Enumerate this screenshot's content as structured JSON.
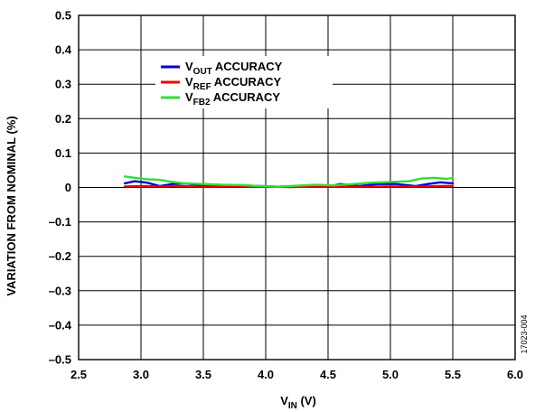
{
  "chart_data": {
    "type": "line",
    "xlabel": {
      "main": "V",
      "sub": "IN",
      "unit": " (V)"
    },
    "ylabel": "VARIATION FROM NOMINAL (%)",
    "xlim": [
      2.5,
      6.0
    ],
    "ylim": [
      -0.5,
      0.5
    ],
    "xticks": [
      "2.5",
      "3.0",
      "3.5",
      "4.0",
      "4.5",
      "5.0",
      "5.5",
      "6.0"
    ],
    "yticks": [
      "0.5",
      "0.4",
      "0.3",
      "0.2",
      "0.1",
      "0",
      "–0.1",
      "–0.2",
      "–0.3",
      "–0.4",
      "–0.5"
    ],
    "grid": true,
    "legend_position": "upper-left",
    "figure_id": "17023-004",
    "series": [
      {
        "name": {
          "main": "V",
          "sub": "OUT",
          "rest": " ACCURACY"
        },
        "color": "#0000cc",
        "x": [
          2.87,
          2.95,
          3.05,
          3.15,
          3.25,
          3.35,
          3.5,
          3.65,
          3.8,
          3.95,
          4.1,
          4.25,
          4.4,
          4.5,
          4.6,
          4.75,
          4.9,
          5.05,
          5.2,
          5.3,
          5.4,
          5.5
        ],
        "y": [
          0.012,
          0.018,
          0.014,
          0.004,
          0.01,
          0.012,
          0.006,
          0.004,
          0.006,
          0.004,
          0.002,
          0.004,
          0.003,
          0.002,
          0.01,
          0.004,
          0.01,
          0.01,
          0.004,
          0.01,
          0.015,
          0.012
        ]
      },
      {
        "name": {
          "main": "V",
          "sub": "REF",
          "rest": " ACCURACY"
        },
        "color": "#ee0000",
        "x": [
          2.87,
          3.0,
          3.15,
          3.3,
          3.45,
          3.6,
          3.75,
          3.9,
          4.05,
          4.2,
          4.35,
          4.5,
          4.65,
          4.8,
          4.95,
          5.1,
          5.25,
          5.4,
          5.5
        ],
        "y": [
          0.003,
          0.004,
          0.003,
          0.004,
          0.003,
          0.002,
          0.003,
          0.002,
          0.002,
          0.001,
          0.002,
          0.002,
          0.002,
          0.002,
          0.003,
          0.003,
          0.003,
          0.004,
          0.004
        ]
      },
      {
        "name": {
          "main": "V",
          "sub": "FB2",
          "rest": " ACCURACY"
        },
        "color": "#33dd33",
        "x": [
          2.87,
          2.95,
          3.05,
          3.15,
          3.25,
          3.35,
          3.5,
          3.65,
          3.8,
          3.95,
          4.1,
          4.25,
          4.4,
          4.55,
          4.7,
          4.85,
          5.0,
          5.15,
          5.25,
          5.35,
          5.45,
          5.5
        ],
        "y": [
          0.032,
          0.028,
          0.024,
          0.022,
          0.016,
          0.012,
          0.01,
          0.008,
          0.007,
          0.004,
          0.002,
          0.005,
          0.008,
          0.006,
          0.01,
          0.014,
          0.016,
          0.018,
          0.026,
          0.028,
          0.025,
          0.028
        ]
      }
    ]
  }
}
